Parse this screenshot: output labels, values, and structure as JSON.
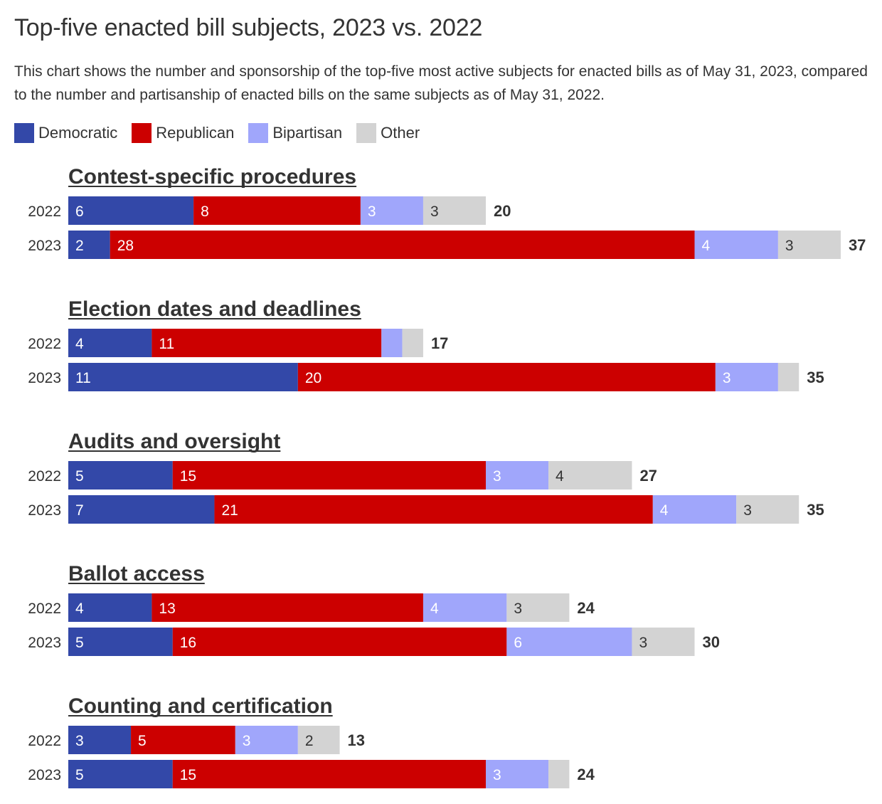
{
  "title": "Top-five enacted bill subjects, 2023 vs. 2022",
  "subtitle": "This chart shows the number and sponsorship of the top-five most active subjects for enacted bills as of May 31, 2023, compared to the number and partisanship of enacted bills on the same subjects as of May 31, 2022.",
  "colors": {
    "Democratic": "#3348a8",
    "Republican": "#cc0000",
    "Bipartisan": "#a0a6fb",
    "Other": "#d3d3d3"
  },
  "chart_data": {
    "type": "bar",
    "orientation": "horizontal",
    "stacked": true,
    "series_names": [
      "Democratic",
      "Republican",
      "Bipartisan",
      "Other"
    ],
    "legend": [
      {
        "name": "Democratic",
        "color": "#3348a8"
      },
      {
        "name": "Republican",
        "color": "#cc0000"
      },
      {
        "name": "Bipartisan",
        "color": "#a0a6fb"
      },
      {
        "name": "Other",
        "color": "#d3d3d3"
      }
    ],
    "legend_position": "top-left",
    "grid": false,
    "xlim": [
      0,
      37
    ],
    "groups": [
      {
        "subject": "Contest-specific procedures",
        "rows": [
          {
            "year": "2022",
            "values": [
              6,
              8,
              3,
              3
            ],
            "total": 20
          },
          {
            "year": "2023",
            "values": [
              2,
              28,
              4,
              3
            ],
            "total": 37
          }
        ]
      },
      {
        "subject": "Election dates and deadlines",
        "rows": [
          {
            "year": "2022",
            "values": [
              4,
              11,
              1,
              1
            ],
            "total": 17
          },
          {
            "year": "2023",
            "values": [
              11,
              20,
              3,
              1
            ],
            "total": 35
          }
        ]
      },
      {
        "subject": "Audits and oversight",
        "rows": [
          {
            "year": "2022",
            "values": [
              5,
              15,
              3,
              4
            ],
            "total": 27
          },
          {
            "year": "2023",
            "values": [
              7,
              21,
              4,
              3
            ],
            "total": 35
          }
        ]
      },
      {
        "subject": "Ballot access",
        "rows": [
          {
            "year": "2022",
            "values": [
              4,
              13,
              4,
              3
            ],
            "total": 24
          },
          {
            "year": "2023",
            "values": [
              5,
              16,
              6,
              3
            ],
            "total": 30
          }
        ]
      },
      {
        "subject": "Counting and certification",
        "rows": [
          {
            "year": "2022",
            "values": [
              3,
              5,
              3,
              2
            ],
            "total": 13
          },
          {
            "year": "2023",
            "values": [
              5,
              15,
              3,
              1
            ],
            "total": 24
          }
        ]
      }
    ]
  }
}
